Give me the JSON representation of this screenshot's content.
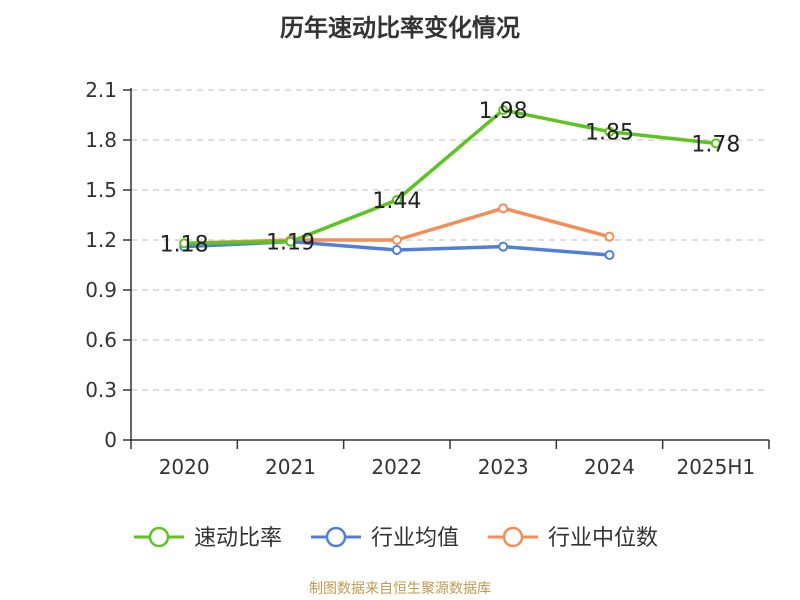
{
  "chart_data": {
    "type": "line",
    "title": "历年速动比率变化情况",
    "categories": [
      "2020",
      "2021",
      "2022",
      "2023",
      "2024",
      "2025H1"
    ],
    "ylim": [
      0,
      2.1
    ],
    "yticks": [
      "0",
      "0.3",
      "0.6",
      "0.9",
      "1.2",
      "1.5",
      "1.8",
      "2.1"
    ],
    "grid": true,
    "legend_position": "bottom",
    "series": [
      {
        "name": "速动比率",
        "color": "#5cc41f",
        "values": [
          1.18,
          1.19,
          1.44,
          1.98,
          1.85,
          1.78
        ],
        "labels": [
          "1.18",
          "1.19",
          "1.44",
          "1.98",
          "1.85",
          "1.78"
        ]
      },
      {
        "name": "行业均值",
        "color": "#4f7fd8",
        "values": [
          1.16,
          1.19,
          1.14,
          1.16,
          1.11,
          null
        ]
      },
      {
        "name": "行业中位数",
        "color": "#f58c55",
        "values": [
          1.18,
          1.2,
          1.2,
          1.39,
          1.22,
          null
        ]
      }
    ]
  },
  "footer": {
    "source": "制图数据来自恒生聚源数据库"
  }
}
